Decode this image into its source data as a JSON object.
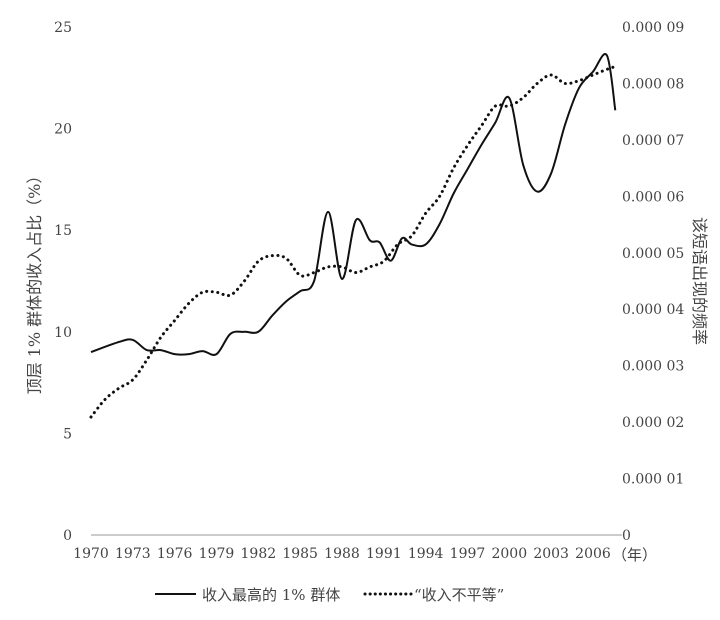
{
  "chart_data": {
    "type": "line",
    "title": "",
    "xlabel": "（年）",
    "ylabel": "顶层 1% 群体的收入占比（%）",
    "y2label": "该短语出现的频率",
    "xlim": [
      1970,
      2008
    ],
    "ylim": [
      0,
      25
    ],
    "y2lim": [
      0,
      9e-05
    ],
    "x_ticks": [
      "1970",
      "1973",
      "1976",
      "1979",
      "1982",
      "1985",
      "1988",
      "1991",
      "1994",
      "1997",
      "2000",
      "2003",
      "2006"
    ],
    "y_ticks": [
      "0",
      "5",
      "10",
      "15",
      "20",
      "25"
    ],
    "y2_ticks": [
      "0",
      "0.000 01",
      "0.000 02",
      "0.000 03",
      "0.000 04",
      "0.000 05",
      "0.000 06",
      "0.000 07",
      "0.000 08",
      "0.000 09"
    ],
    "legend_position": "bottom",
    "grid": false,
    "series": [
      {
        "name": "收入最高的 1% 群体",
        "axis": "left",
        "style": "solid",
        "x": [
          1970,
          1972,
          1973,
          1974,
          1975,
          1976,
          1977,
          1978,
          1979,
          1980,
          1981,
          1982,
          1983,
          1984,
          1985,
          1986,
          1987,
          1988,
          1989,
          1990,
          1990.7,
          1991.5,
          1992.3,
          1993,
          1994,
          1995,
          1996,
          1997,
          1998,
          1999,
          2000,
          2001,
          2002,
          2003,
          2004,
          2005,
          2006,
          2007,
          2007.6
        ],
        "y": [
          9.0,
          9.5,
          9.6,
          9.1,
          9.1,
          8.9,
          8.9,
          9.05,
          8.9,
          9.9,
          10.0,
          10.0,
          10.8,
          11.5,
          12.0,
          12.5,
          15.9,
          12.6,
          15.5,
          14.5,
          14.4,
          13.5,
          14.6,
          14.3,
          14.3,
          15.3,
          16.8,
          18.0,
          19.2,
          20.3,
          21.5,
          18.2,
          16.9,
          17.8,
          20.2,
          22.0,
          22.8,
          23.6,
          20.9
        ]
      },
      {
        "name": "“收入不平等”",
        "axis": "right",
        "style": "dotted",
        "x": [
          1970,
          1971,
          1972,
          1973,
          1974,
          1975,
          1976,
          1977,
          1978,
          1979,
          1980,
          1981,
          1982,
          1983,
          1984,
          1985,
          1986,
          1987,
          1988,
          1989,
          1990,
          1991,
          1992,
          1993,
          1994,
          1995,
          1996,
          1997,
          1998,
          1999,
          2000,
          2001,
          2002,
          2003,
          2004,
          2005,
          2006,
          2007,
          2007.6
        ],
        "y": [
          2.09e-05,
          2.4e-05,
          2.6e-05,
          2.75e-05,
          3.1e-05,
          3.5e-05,
          3.8e-05,
          4.1e-05,
          4.3e-05,
          4.3e-05,
          4.25e-05,
          4.5e-05,
          4.85e-05,
          4.95e-05,
          4.9e-05,
          4.6e-05,
          4.65e-05,
          4.75e-05,
          4.75e-05,
          4.65e-05,
          4.75e-05,
          4.85e-05,
          5.15e-05,
          5.3e-05,
          5.7e-05,
          6e-05,
          6.5e-05,
          6.9e-05,
          7.25e-05,
          7.6e-05,
          7.6e-05,
          7.75e-05,
          8e-05,
          8.15e-05,
          8e-05,
          8.05e-05,
          8.15e-05,
          8.25e-05,
          8.3e-05
        ]
      }
    ]
  }
}
